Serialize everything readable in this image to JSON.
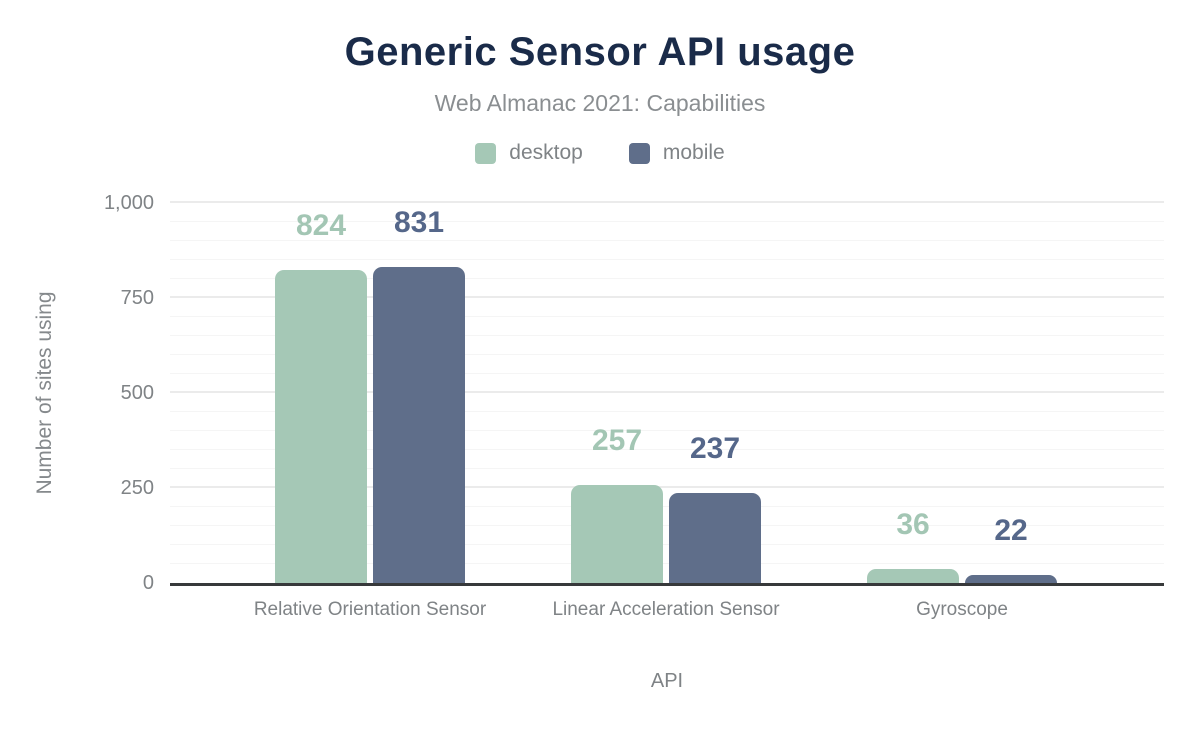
{
  "chart_data": {
    "type": "bar",
    "title": "Generic Sensor API usage",
    "subtitle": "Web Almanac 2021: Capabilities",
    "xlabel": "API",
    "ylabel": "Number of sites using",
    "categories": [
      "Relative Orientation Sensor",
      "Linear Acceleration Sensor",
      "Gyroscope"
    ],
    "series": [
      {
        "name": "desktop",
        "color": "#a5c8b6",
        "label_color": "#a3c6b4",
        "values": [
          824,
          257,
          36
        ]
      },
      {
        "name": "mobile",
        "color": "#5f6e8a",
        "label_color": "#55678a",
        "values": [
          831,
          237,
          22
        ]
      }
    ],
    "ylim": [
      0,
      1000
    ],
    "yticks": [
      {
        "label": "0",
        "value": 0
      },
      {
        "label": "250",
        "value": 250
      },
      {
        "label": "500",
        "value": 500
      },
      {
        "label": "750",
        "value": 750
      },
      {
        "label": "1,000",
        "value": 1000
      }
    ],
    "grid": {
      "minor_step": 50,
      "major_step": 250,
      "visible": true
    },
    "legend_position": "top",
    "colors": {
      "title": "#1a2b49",
      "subtitle": "#8a8e91",
      "axis_text": "#7f8386",
      "axis_line": "#37393b"
    }
  }
}
